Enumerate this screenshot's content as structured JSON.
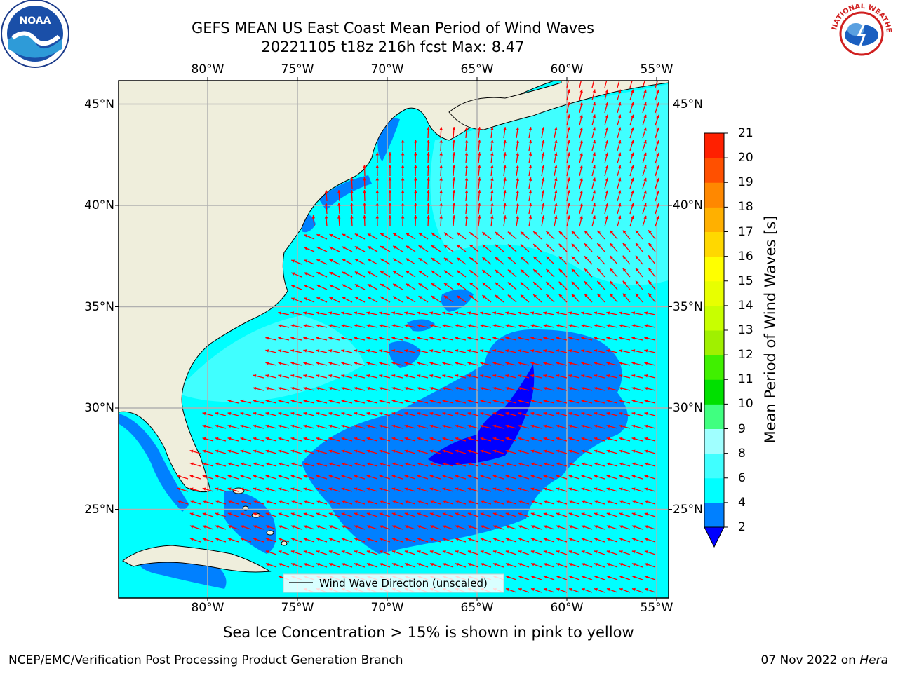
{
  "title": {
    "line1": "GEFS MEAN US East Coast Mean Period of Wind Waves",
    "line2": "20221105 t18z 216h fcst   Max: 8.47"
  },
  "map": {
    "lon_labels": [
      "80°W",
      "75°W",
      "70°W",
      "65°W",
      "60°W",
      "55°W"
    ],
    "lat_labels": [
      "45°N",
      "40°N",
      "35°N",
      "30°N",
      "25°N"
    ],
    "legend_label": "Wind Wave Direction (unscaled)",
    "arrow_color": "#ff0000",
    "land_color": "#efeedc"
  },
  "colorbar": {
    "title": "Mean Period of Wind Waves [s]",
    "ticks": [
      "2",
      "4",
      "6",
      "8",
      "9",
      "10",
      "11",
      "12",
      "13",
      "14",
      "15",
      "16",
      "17",
      "18",
      "19",
      "20",
      "21"
    ],
    "colors": [
      "#0080ff",
      "#00ffff",
      "#40ffff",
      "#a0ffff",
      "#40ff80",
      "#00e000",
      "#40f000",
      "#a0f000",
      "#c8ff00",
      "#e8ff00",
      "#ffff00",
      "#ffd800",
      "#ffb000",
      "#ff8800",
      "#ff5000",
      "#ff2000"
    ],
    "extend_min_color": "#0000ff"
  },
  "footer": {
    "note": "Sea Ice Concentration > 15% is shown in pink to yellow",
    "left": "NCEP/EMC/Verification Post Processing Product Generation Branch",
    "date": "07 Nov 2022 on ",
    "machine": "Hera"
  },
  "logos": {
    "noaa": "NOAA",
    "nws_text": "NATIONAL WEATHER SERVICE"
  }
}
